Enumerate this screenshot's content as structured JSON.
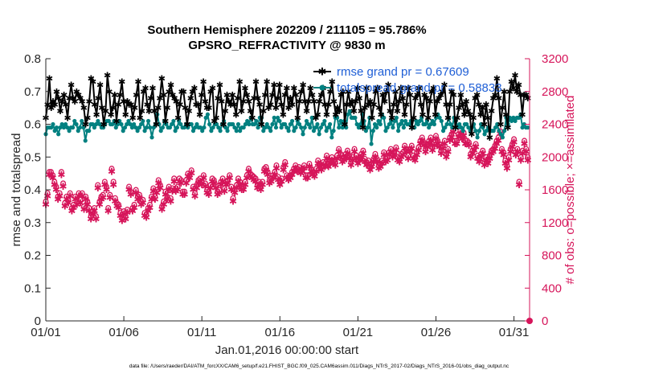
{
  "chart_data": {
    "type": "line",
    "title": "Southern Hemisphere 202209 / 211105 = 95.786%",
    "subtitle": "GPSRO_REFRACTIVITY @ 9830 m",
    "xlabel": "Jan.01,2016 00:00:00 start",
    "ylabel": "rmse and totalspread",
    "ylabel_right": "# of obs: o=possible; ×=assimilated",
    "footnote": "data file: /Users/raeder/DAI/ATM_forcXX/CAM6_setup/f.e21.FHIST_BGC.f09_025.CAM6assim.011/Diags_NTrS_2017-02/Diags_NTrS_2016-01/obs_diag_output.nc",
    "x_tick_labels": [
      "01/01",
      "01/06",
      "01/11",
      "01/16",
      "01/21",
      "01/26",
      "01/31"
    ],
    "x_tick_days": [
      1,
      6,
      11,
      16,
      21,
      26,
      31
    ],
    "xlim": [
      1,
      32
    ],
    "ylim": [
      0,
      0.8
    ],
    "y_ticks": [
      "0",
      "0.1",
      "0.2",
      "0.3",
      "0.4",
      "0.5",
      "0.6",
      "0.7",
      "0.8"
    ],
    "ylim_right": [
      0,
      3200
    ],
    "y_ticks_right": [
      "0",
      "400",
      "800",
      "1200",
      "1600",
      "2000",
      "2400",
      "2800",
      "3200"
    ],
    "legend_location": "top-right",
    "series": [
      {
        "name": "rmse grand pr = 0.67609",
        "color": "#000000",
        "marker": "star",
        "axis": "left",
        "values": [
          0.62,
          0.66,
          0.74,
          0.65,
          0.67,
          0.66,
          0.7,
          0.68,
          0.64,
          0.67,
          0.69,
          0.66,
          0.62,
          0.68,
          0.72,
          0.68,
          0.67,
          0.7,
          0.69,
          0.68,
          0.67,
          0.65,
          0.6,
          0.62,
          0.67,
          0.74,
          0.73,
          0.66,
          0.63,
          0.68,
          0.72,
          0.65,
          0.6,
          0.64,
          0.75,
          0.7,
          0.63,
          0.65,
          0.69,
          0.61,
          0.66,
          0.69,
          0.73,
          0.67,
          0.63,
          0.67,
          0.66,
          0.66,
          0.62,
          0.65,
          0.69,
          0.73,
          0.62,
          0.64,
          0.7,
          0.71,
          0.66,
          0.64,
          0.68,
          0.71,
          0.64,
          0.6,
          0.65,
          0.68,
          0.74,
          0.69,
          0.61,
          0.65,
          0.7,
          0.72,
          0.69,
          0.68,
          0.67,
          0.62,
          0.66,
          0.7,
          0.7,
          0.65,
          0.6,
          0.64,
          0.68,
          0.7,
          0.71,
          0.66,
          0.66,
          0.63,
          0.69,
          0.73,
          0.67,
          0.65,
          0.65,
          0.7,
          0.71,
          0.61,
          0.62,
          0.68,
          0.72,
          0.67,
          0.6,
          0.64,
          0.69,
          0.67,
          0.66,
          0.69,
          0.66,
          0.63,
          0.68,
          0.73,
          0.64,
          0.67,
          0.71,
          0.69,
          0.67,
          0.64,
          0.62,
          0.68,
          0.73,
          0.68,
          0.66,
          0.6,
          0.64,
          0.69,
          0.73,
          0.65,
          0.66,
          0.69,
          0.72,
          0.65,
          0.68,
          0.72,
          0.66,
          0.63,
          0.69,
          0.71,
          0.65,
          0.68,
          0.66,
          0.71,
          0.69,
          0.62,
          0.67,
          0.7,
          0.72,
          0.67,
          0.64,
          0.67,
          0.71,
          0.69,
          0.67,
          0.62,
          0.63,
          0.67,
          0.69,
          0.71,
          0.66,
          0.63,
          0.66,
          0.7,
          0.73,
          0.67,
          0.63,
          0.65,
          0.64,
          0.69,
          0.7,
          0.6,
          0.66,
          0.7,
          0.66,
          0.67,
          0.64,
          0.67,
          0.71,
          0.68,
          0.64,
          0.59,
          0.65,
          0.71,
          0.66,
          0.67,
          0.62,
          0.66,
          0.7,
          0.71,
          0.65,
          0.63,
          0.69,
          0.67,
          0.7,
          0.72,
          0.64,
          0.62,
          0.66,
          0.7,
          0.64,
          0.67,
          0.71,
          0.68,
          0.63,
          0.66,
          0.71,
          0.69,
          0.59,
          0.62,
          0.68,
          0.69,
          0.71,
          0.66,
          0.63,
          0.69,
          0.68,
          0.62,
          0.67,
          0.7,
          0.71,
          0.63,
          0.67,
          0.68,
          0.69,
          0.7,
          0.72,
          0.66,
          0.62,
          0.66,
          0.7,
          0.69,
          0.59,
          0.62,
          0.65,
          0.69,
          0.66,
          0.63,
          0.67,
          0.64,
          0.63,
          0.57,
          0.62,
          0.68,
          0.69,
          0.66,
          0.63,
          0.65,
          0.6,
          0.66,
          0.62,
          0.56,
          0.64,
          0.68,
          0.69,
          0.74,
          0.68,
          0.6,
          0.65,
          0.7,
          0.63,
          0.59,
          0.7,
          0.73,
          0.71,
          0.75,
          0.7,
          0.72,
          0.69,
          0.63,
          0.69,
          0.69,
          0.68
        ]
      },
      {
        "name": "totalspread grand pr = 0.58833",
        "color": "#008080",
        "marker": "circle",
        "axis": "left",
        "values": [
          0.57,
          0.59,
          0.59,
          0.59,
          0.6,
          0.58,
          0.59,
          0.57,
          0.59,
          0.6,
          0.59,
          0.6,
          0.59,
          0.58,
          0.59,
          0.59,
          0.61,
          0.6,
          0.58,
          0.59,
          0.61,
          0.59,
          0.55,
          0.58,
          0.58,
          0.6,
          0.6,
          0.59,
          0.6,
          0.61,
          0.6,
          0.59,
          0.59,
          0.6,
          0.61,
          0.61,
          0.6,
          0.6,
          0.61,
          0.59,
          0.6,
          0.61,
          0.6,
          0.58,
          0.59,
          0.6,
          0.61,
          0.6,
          0.59,
          0.6,
          0.59,
          0.58,
          0.59,
          0.6,
          0.61,
          0.58,
          0.59,
          0.61,
          0.59,
          0.56,
          0.59,
          0.6,
          0.63,
          0.6,
          0.58,
          0.59,
          0.61,
          0.6,
          0.59,
          0.59,
          0.6,
          0.61,
          0.58,
          0.59,
          0.61,
          0.6,
          0.59,
          0.59,
          0.6,
          0.59,
          0.6,
          0.6,
          0.58,
          0.59,
          0.6,
          0.59,
          0.59,
          0.58,
          0.59,
          0.62,
          0.63,
          0.6,
          0.58,
          0.59,
          0.6,
          0.6,
          0.59,
          0.58,
          0.6,
          0.61,
          0.59,
          0.58,
          0.6,
          0.6,
          0.6,
          0.59,
          0.58,
          0.6,
          0.58,
          0.59,
          0.59,
          0.6,
          0.61,
          0.6,
          0.62,
          0.6,
          0.6,
          0.61,
          0.59,
          0.62,
          0.62,
          0.58,
          0.59,
          0.6,
          0.59,
          0.58,
          0.6,
          0.62,
          0.59,
          0.62,
          0.61,
          0.59,
          0.6,
          0.6,
          0.59,
          0.58,
          0.6,
          0.61,
          0.58,
          0.59,
          0.61,
          0.6,
          0.59,
          0.57,
          0.59,
          0.61,
          0.6,
          0.59,
          0.62,
          0.58,
          0.59,
          0.6,
          0.57,
          0.59,
          0.6,
          0.61,
          0.58,
          0.59,
          0.6,
          0.56,
          0.58,
          0.62,
          0.62,
          0.59,
          0.61,
          0.59,
          0.61,
          0.59,
          0.63,
          0.64,
          0.62,
          0.62,
          0.62,
          0.6,
          0.59,
          0.6,
          0.63,
          0.61,
          0.58,
          0.59,
          0.62,
          0.54,
          0.58,
          0.6,
          0.59,
          0.61,
          0.6,
          0.63,
          0.62,
          0.58,
          0.59,
          0.6,
          0.61,
          0.59,
          0.61,
          0.62,
          0.58,
          0.6,
          0.61,
          0.59,
          0.61,
          0.6,
          0.6,
          0.61,
          0.59,
          0.59,
          0.61,
          0.6,
          0.61,
          0.62,
          0.6,
          0.6,
          0.61,
          0.59,
          0.6,
          0.61,
          0.6,
          0.62,
          0.63,
          0.62,
          0.61,
          0.58,
          0.59,
          0.6,
          0.62,
          0.6,
          0.59,
          0.62,
          0.61,
          0.59,
          0.6,
          0.59,
          0.58,
          0.6,
          0.6,
          0.59,
          0.58,
          0.59,
          0.6,
          0.58,
          0.56,
          0.58,
          0.6,
          0.59,
          0.57,
          0.58,
          0.59,
          0.58,
          0.58,
          0.58,
          0.59,
          0.6,
          0.58,
          0.57,
          0.56,
          0.58,
          0.62,
          0.6,
          0.62,
          0.61,
          0.62,
          0.61,
          0.62,
          0.62,
          0.63,
          0.59,
          0.6,
          0.59,
          0.59
        ]
      },
      {
        "name": "obs possible",
        "color": "#d6155a",
        "marker": "open-circle",
        "axis": "right",
        "values": [
          1460,
          1560,
          1820,
          1820,
          1780,
          1700,
          1640,
          1520,
          1560,
          1820,
          1680,
          1440,
          1520,
          1480,
          1560,
          1380,
          1420,
          1520,
          1460,
          1560,
          1480,
          1560,
          1400,
          1520,
          1460,
          1380,
          1280,
          1340,
          1380,
          1280,
          1660,
          1460,
          1520,
          1540,
          1700,
          1640,
          1380,
          1540,
          1860,
          1700,
          1500,
          1440,
          1420,
          1320,
          1260,
          1340,
          1280,
          1360,
          1640,
          1580,
          1380,
          1420,
          1600,
          1520,
          1540,
          1460,
          1480,
          1320,
          1300,
          1380,
          1420,
          1520,
          1620,
          1520,
          1600,
          1720,
          1660,
          1400,
          1460,
          1580,
          1520,
          1640,
          1500,
          1620,
          1740,
          1620,
          1640,
          1740,
          1720,
          1580,
          1580,
          1720,
          1800,
          1780,
          1840,
          1640,
          1560,
          1660,
          1720,
          1740,
          1700,
          1780,
          1680,
          1600,
          1580,
          1660,
          1740,
          1720,
          1660,
          1580,
          1600,
          1700,
          1740,
          1620,
          1700,
          1720,
          1780,
          1640,
          1500,
          1600,
          1660,
          1740,
          1700,
          1640,
          1640,
          1700,
          1780,
          1860,
          1800,
          1780,
          1760,
          1740,
          1660,
          1700,
          1640,
          1700,
          1860,
          1880,
          1820,
          1720,
          1740,
          1780,
          1820,
          1900,
          1760,
          1700,
          1740,
          1880,
          1940,
          1780,
          1760,
          1780,
          1820,
          1860,
          1900,
          1860,
          1880,
          1840,
          1860,
          1900,
          1780,
          1780,
          1920,
          1860,
          1820,
          1800,
          1860,
          1960,
          1920,
          1880,
          1940,
          1920,
          2020,
          1920,
          1960,
          2000,
          1960,
          1940,
          2020,
          2100,
          2040,
          1980,
          2000,
          2040,
          2080,
          2020,
          1940,
          2000,
          2100,
          2020,
          1960,
          2000,
          2040,
          2080,
          1980,
          1940,
          1960,
          1880,
          1920,
          1980,
          2040,
          1980,
          1900,
          1920,
          1960,
          2060,
          1980,
          2000,
          2060,
          2100,
          2040,
          2060,
          2120,
          2000,
          1980,
          2040,
          2060,
          2140,
          2100,
          2020,
          2100,
          2140,
          2020,
          2000,
          2060,
          2120,
          2200,
          2240,
          2180,
          2100,
          2160,
          2200,
          2240,
          2120,
          2180,
          2260,
          2200,
          2160,
          2080,
          2140,
          2200,
          2040,
          2100,
          2240,
          2280,
          2340,
          2200,
          2200,
          2280,
          2320,
          2260,
          2300,
          2200,
          2200,
          2180,
          2040,
          2080,
          2120,
          2160,
          2020,
          1980,
          2040,
          2080,
          1940,
          2000,
          1960,
          2020,
          2080,
          2100,
          2140,
          2200,
          2240,
          2320,
          2100,
          2060,
          1960,
          1900,
          2000,
          2100,
          2160,
          2220,
          2060,
          2100,
          1700,
          2000,
          2080,
          2200,
          2100,
          2000
        ]
      },
      {
        "name": "obs assimilated",
        "color": "#d6155a",
        "marker": "star",
        "axis": "right",
        "values": [
          1420,
          1520,
          1780,
          1780,
          1740,
          1660,
          1600,
          1480,
          1520,
          1780,
          1640,
          1400,
          1480,
          1440,
          1520,
          1340,
          1380,
          1480,
          1420,
          1520,
          1440,
          1520,
          1360,
          1480,
          1420,
          1340,
          1240,
          1300,
          1340,
          1240,
          1620,
          1420,
          1480,
          1500,
          1660,
          1600,
          1340,
          1500,
          1820,
          1660,
          1460,
          1400,
          1380,
          1280,
          1220,
          1300,
          1240,
          1320,
          1600,
          1540,
          1340,
          1380,
          1560,
          1480,
          1500,
          1420,
          1440,
          1280,
          1260,
          1340,
          1380,
          1480,
          1580,
          1480,
          1560,
          1680,
          1620,
          1360,
          1420,
          1540,
          1480,
          1600,
          1460,
          1580,
          1700,
          1580,
          1600,
          1700,
          1680,
          1540,
          1540,
          1680,
          1760,
          1740,
          1800,
          1600,
          1520,
          1620,
          1680,
          1700,
          1660,
          1740,
          1640,
          1560,
          1540,
          1620,
          1700,
          1680,
          1620,
          1540,
          1560,
          1660,
          1700,
          1580,
          1660,
          1680,
          1740,
          1600,
          1460,
          1560,
          1620,
          1700,
          1660,
          1600,
          1600,
          1660,
          1740,
          1820,
          1760,
          1740,
          1720,
          1700,
          1620,
          1660,
          1600,
          1660,
          1820,
          1840,
          1780,
          1680,
          1700,
          1740,
          1780,
          1860,
          1720,
          1660,
          1700,
          1840,
          1900,
          1740,
          1720,
          1740,
          1780,
          1820,
          1860,
          1820,
          1840,
          1800,
          1820,
          1860,
          1740,
          1740,
          1880,
          1820,
          1780,
          1760,
          1820,
          1920,
          1880,
          1840,
          1900,
          1880,
          1980,
          1880,
          1920,
          1960,
          1920,
          1900,
          1980,
          2060,
          2000,
          1940,
          1960,
          2000,
          2040,
          1980,
          1900,
          1960,
          2060,
          1980,
          1920,
          1960,
          2000,
          2040,
          1940,
          1900,
          1920,
          1840,
          1880,
          1940,
          2000,
          1940,
          1860,
          1880,
          1920,
          2020,
          1940,
          1960,
          2020,
          2060,
          2000,
          2020,
          2080,
          1960,
          1940,
          2000,
          2020,
          2100,
          2060,
          1980,
          2060,
          2100,
          1980,
          1960,
          2020,
          2080,
          2160,
          2200,
          2140,
          2060,
          2120,
          2160,
          2200,
          2080,
          2140,
          2220,
          2160,
          2120,
          2040,
          2100,
          2160,
          2000,
          2060,
          2200,
          2240,
          2300,
          2160,
          2160,
          2240,
          2280,
          2220,
          2260,
          2160,
          2160,
          2140,
          2000,
          2040,
          2080,
          2120,
          1980,
          1940,
          2000,
          2040,
          1900,
          1960,
          1920,
          1980,
          2040,
          2060,
          2100,
          2160,
          2200,
          2280,
          2060,
          2020,
          1920,
          1860,
          1960,
          2060,
          2120,
          2180,
          2020,
          2060,
          1660,
          1960,
          2040,
          2160,
          2060,
          1960
        ]
      }
    ]
  }
}
